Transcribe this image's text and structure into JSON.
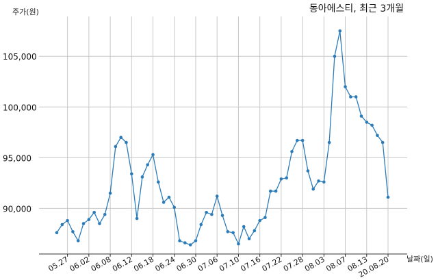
{
  "chart_data": {
    "type": "line",
    "title": "동아에스티, 최근 3개월",
    "ylabel": "주가(원)",
    "xlabel": "날짜(일)",
    "ylim": [
      85500,
      109000
    ],
    "yticks": [
      90000,
      95000,
      100000,
      105000
    ],
    "ytick_labels": [
      "90,000",
      "95,000",
      "100,000",
      "105,000"
    ],
    "grid": true,
    "x_tick_labels": [
      "05.27",
      "06.02",
      "06.08",
      "06.12",
      "06.18",
      "06.24",
      "06.30",
      "07.06",
      "07.10",
      "07.16",
      "07.22",
      "07.28",
      "08.03",
      "08.07",
      "08.13",
      "20.08.20"
    ],
    "x_tick_indices": [
      2,
      6,
      10,
      14,
      18,
      22,
      26,
      30,
      34,
      38,
      42,
      46,
      50,
      54,
      58,
      62
    ],
    "series": [
      {
        "color": "#2b7bb9",
        "values": [
          87600,
          88400,
          88800,
          87700,
          86800,
          88500,
          88900,
          89600,
          88500,
          89400,
          91500,
          96100,
          97000,
          96500,
          93400,
          89000,
          93100,
          94300,
          95300,
          92600,
          90600,
          91100,
          90100,
          86800,
          86600,
          86400,
          86800,
          88400,
          89600,
          89400,
          91200,
          89300,
          87700,
          87600,
          86500,
          88200,
          87000,
          87800,
          88800,
          89100,
          91700,
          91700,
          92900,
          93000,
          95600,
          96700,
          96700,
          93700,
          91900,
          92700,
          92600,
          96500,
          105000,
          107500,
          102000,
          101000,
          101000,
          99100,
          98500,
          98200,
          97200,
          96500,
          91100
        ]
      }
    ]
  }
}
